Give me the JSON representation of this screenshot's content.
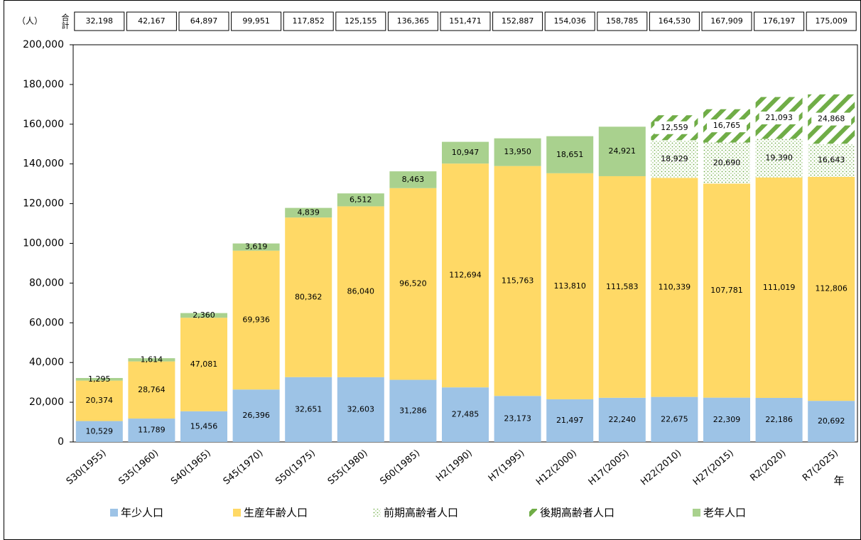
{
  "chart_data": {
    "type": "stacked-bar",
    "unit_label": "（人）",
    "x_unit_label": "年",
    "categories": [
      "S30(1955)",
      "S35(1960)",
      "S40(1965)",
      "S45(1970)",
      "S50(1975)",
      "S55(1980)",
      "S60(1985)",
      "H2(1990)",
      "H7(1995)",
      "H12(2000)",
      "H17(2005)",
      "H22(2010)",
      "H27(2015)",
      "R2(2020)",
      "R7(2025)"
    ],
    "totals": {
      "label": "合計",
      "values": [
        32198,
        42167,
        64897,
        99951,
        117852,
        125155,
        136365,
        151471,
        152887,
        154036,
        158785,
        164530,
        167909,
        176197,
        175009
      ],
      "value_labels": [
        "32,198",
        "42,167",
        "64,897",
        "99,951",
        "117,852",
        "125,155",
        "136,365",
        "151,471",
        "152,887",
        "154,036",
        "158,785",
        "164,530",
        "167,909",
        "176,197",
        "175,009"
      ]
    },
    "series": [
      {
        "name": "年少人口",
        "color": "#9dc3e6",
        "values": [
          10529,
          11789,
          15456,
          26396,
          32651,
          32603,
          31286,
          27485,
          23173,
          21497,
          22240,
          22675,
          22309,
          22186,
          20692
        ],
        "value_labels": [
          "10,529",
          "11,789",
          "15,456",
          "26,396",
          "32,651",
          "32,603",
          "31,286",
          "27,485",
          "23,173",
          "21,497",
          "22,240",
          "22,675",
          "22,309",
          "22,186",
          "20,692"
        ]
      },
      {
        "name": "生産年齢人口",
        "color": "#ffd966",
        "values": [
          20374,
          28764,
          47081,
          69936,
          80362,
          86040,
          96520,
          112694,
          115763,
          113810,
          111583,
          110339,
          107781,
          111019,
          112806
        ],
        "value_labels": [
          "20,374",
          "28,764",
          "47,081",
          "69,936",
          "80,362",
          "86,040",
          "96,520",
          "112,694",
          "115,763",
          "113,810",
          "111,583",
          "110,339",
          "107,781",
          "111,019",
          "112,806"
        ]
      },
      {
        "name": "前期高齢者人口",
        "color": "#70ad47",
        "pattern": "dots",
        "values": [
          null,
          null,
          null,
          null,
          null,
          null,
          null,
          null,
          null,
          null,
          null,
          18929,
          20690,
          19390,
          16643
        ],
        "value_labels": [
          null,
          null,
          null,
          null,
          null,
          null,
          null,
          null,
          null,
          null,
          null,
          "18,929",
          "20,690",
          "19,390",
          "16,643"
        ]
      },
      {
        "name": "後期高齢者人口",
        "color": "#70ad47",
        "pattern": "stripes",
        "values": [
          null,
          null,
          null,
          null,
          null,
          null,
          null,
          null,
          null,
          null,
          null,
          12559,
          16765,
          21093,
          24868
        ],
        "value_labels": [
          null,
          null,
          null,
          null,
          null,
          null,
          null,
          null,
          null,
          null,
          null,
          "12,559",
          "16,765",
          "21,093",
          "24,868"
        ]
      },
      {
        "name": "老年人口",
        "color": "#a9d18e",
        "values": [
          1295,
          1614,
          2360,
          3619,
          4839,
          6512,
          8463,
          10947,
          13950,
          18651,
          24921,
          null,
          null,
          null,
          null
        ],
        "value_labels": [
          "1,295",
          "1,614",
          "2,360",
          "3,619",
          "4,839",
          "6,512",
          "8,463",
          "10,947",
          "13,950",
          "18,651",
          "24,921",
          null,
          null,
          null,
          null
        ]
      }
    ],
    "ylim": [
      0,
      200000
    ],
    "yticks": [
      0,
      {
        "value": 20000,
        "label": "20,000"
      },
      {
        "value": 40000,
        "label": "40,000"
      },
      {
        "value": 60000,
        "label": "60,000"
      },
      {
        "value": 80000,
        "label": "80,000"
      },
      {
        "value": 100000,
        "label": "100,000"
      },
      {
        "value": 120000,
        "label": "120,000"
      },
      {
        "value": 140000,
        "label": "140,000"
      },
      {
        "value": 160000,
        "label": "160,000"
      },
      {
        "value": 180000,
        "label": "180,000"
      },
      {
        "value": 200000,
        "label": "200,000"
      }
    ],
    "grid": false
  }
}
